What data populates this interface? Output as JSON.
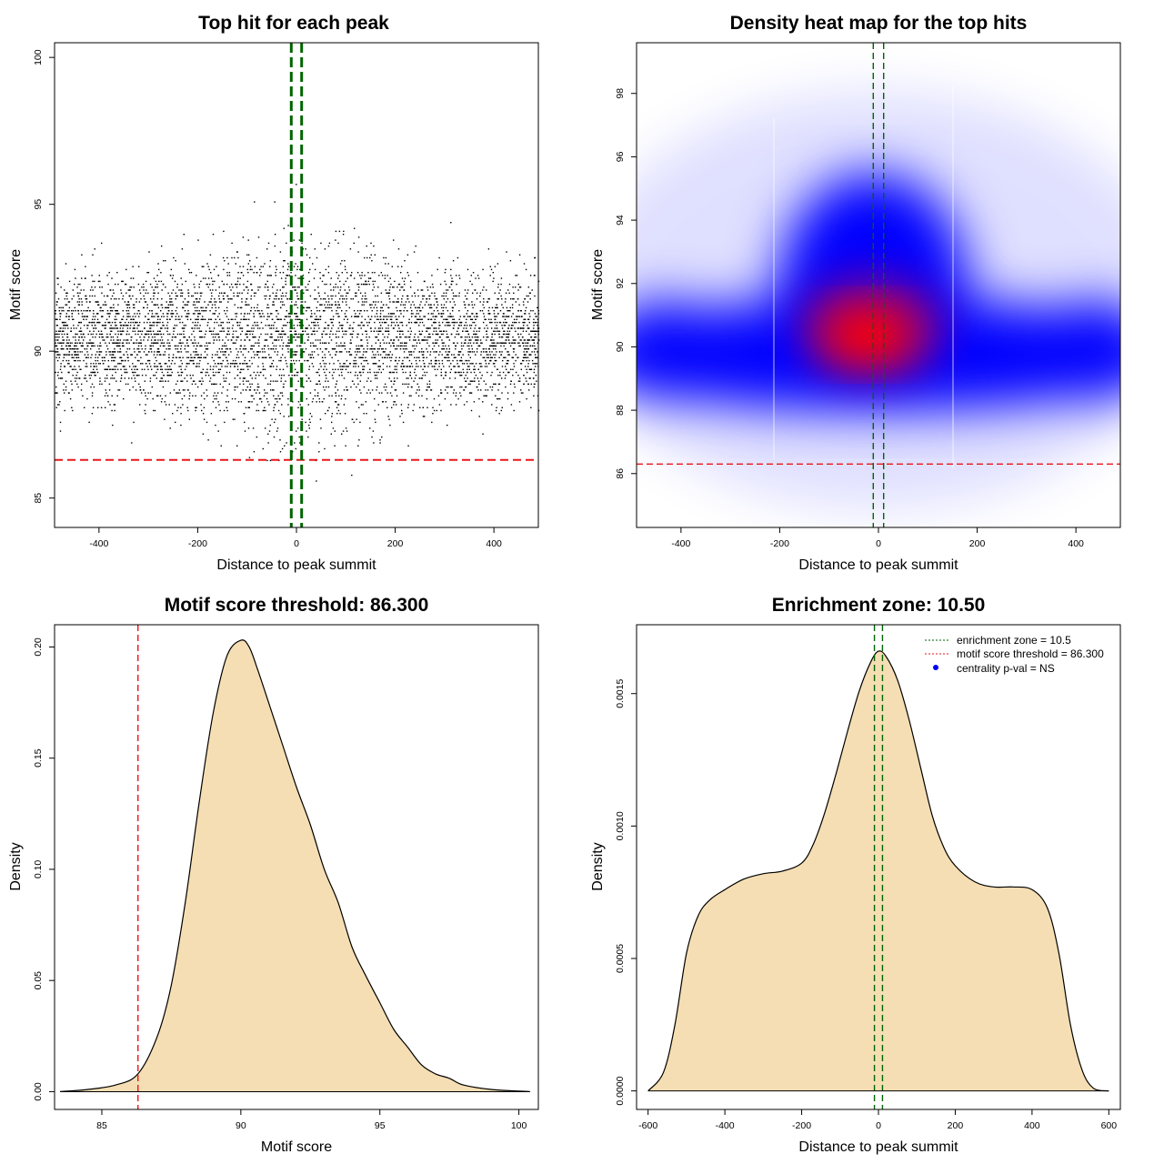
{
  "colors": {
    "threshold_line": "#e8171c",
    "zone_line": "#006400",
    "density_fill": "#f5deb3",
    "points": "#000000",
    "heat_low": "#ffffff",
    "heat_mid": "#0000ff",
    "heat_high": "#ff0000",
    "legend_point": "#0000ff"
  },
  "chart_data": [
    {
      "type": "scatter",
      "title": "Top hit for each peak",
      "xlabel": "Distance to peak summit",
      "ylabel": "Motif score",
      "xlim": [
        -490,
        490
      ],
      "ylim": [
        84,
        100.5
      ],
      "xticks": [
        -400,
        -200,
        0,
        200,
        400
      ],
      "yticks": [
        85,
        90,
        95,
        100
      ],
      "reference_lines": {
        "hline": 86.3,
        "vlines": [
          -10.5,
          10.5
        ]
      },
      "points_description_values": {
        "x_range": [
          -490,
          490
        ],
        "y_center": 90.5,
        "y_spread": 2.1,
        "n_points": 5200
      }
    },
    {
      "type": "heatmap",
      "title": "Density heat map for the top hits",
      "xlabel": "Distance to peak summit",
      "ylabel": "Motif score",
      "xlim": [
        -490,
        490
      ],
      "ylim": [
        84.3,
        99.6
      ],
      "xticks": [
        -400,
        -200,
        0,
        200,
        400
      ],
      "yticks": [
        86,
        88,
        90,
        92,
        94,
        96,
        98
      ],
      "reference_lines": {
        "hline": 86.3,
        "vlines": [
          -10.5,
          10.5
        ]
      },
      "peak": {
        "x": -20,
        "y": 90.2
      }
    },
    {
      "type": "area",
      "title": "Motif score threshold: 86.300",
      "xlabel": "Motif score",
      "ylabel": "Density",
      "xlim": [
        83.3,
        100.7
      ],
      "ylim": [
        -0.008,
        0.21
      ],
      "xticks": [
        85,
        90,
        95,
        100
      ],
      "yticks": [
        "0.00",
        "0.05",
        "0.10",
        "0.15",
        "0.20"
      ],
      "reference_lines": {
        "vline": 86.3
      },
      "x": [
        83.5,
        84.5,
        85.5,
        86.3,
        87.0,
        87.5,
        88.0,
        88.5,
        89.0,
        89.5,
        90.0,
        90.3,
        90.6,
        91.0,
        91.5,
        92.0,
        92.5,
        93.0,
        93.5,
        94.0,
        94.5,
        95.0,
        95.5,
        96.0,
        96.5,
        97.0,
        97.5,
        98.0,
        99.0,
        100.4
      ],
      "y": [
        0.0,
        0.001,
        0.003,
        0.008,
        0.025,
        0.048,
        0.085,
        0.13,
        0.17,
        0.196,
        0.203,
        0.2,
        0.19,
        0.175,
        0.156,
        0.137,
        0.12,
        0.1,
        0.085,
        0.065,
        0.052,
        0.04,
        0.028,
        0.02,
        0.012,
        0.008,
        0.006,
        0.003,
        0.001,
        0.0
      ]
    },
    {
      "type": "area",
      "title": "Enrichment zone: 10.50",
      "xlabel": "Distance to peak summit",
      "ylabel": "Density",
      "xlim": [
        -630,
        630
      ],
      "ylim": [
        -7e-05,
        0.00176
      ],
      "xticks": [
        -600,
        -400,
        -200,
        0,
        200,
        400,
        600
      ],
      "yticks": [
        "0.0000",
        "0.0005",
        "0.0010",
        "0.0015"
      ],
      "reference_lines": {
        "vlines": [
          -10.5,
          10.5
        ]
      },
      "x": [
        -600,
        -560,
        -530,
        -500,
        -470,
        -440,
        -400,
        -350,
        -300,
        -250,
        -200,
        -170,
        -140,
        -110,
        -80,
        -50,
        -20,
        0,
        20,
        50,
        80,
        110,
        140,
        170,
        200,
        250,
        300,
        350,
        400,
        440,
        470,
        500,
        530,
        560,
        600
      ],
      "y": [
        0.0,
        7e-05,
        0.00025,
        0.00052,
        0.00066,
        0.00072,
        0.00076,
        0.0008,
        0.00082,
        0.00083,
        0.00086,
        0.00093,
        0.00105,
        0.0012,
        0.00136,
        0.00151,
        0.00162,
        0.00166,
        0.00164,
        0.00155,
        0.0014,
        0.00122,
        0.00104,
        0.00092,
        0.00085,
        0.00079,
        0.00077,
        0.00077,
        0.00076,
        0.00069,
        0.00052,
        0.00025,
        8e-05,
        1e-05,
        0.0
      ],
      "legend": {
        "position": "top-right",
        "items": [
          {
            "label": "enrichment zone = 10.5",
            "style": "dotted-line",
            "color": "#006400"
          },
          {
            "label": "motif score threshold = 86.300",
            "style": "dotted-line",
            "color": "#e8171c"
          },
          {
            "label": "centrality p-val = NS",
            "style": "point",
            "color": "#0000ff"
          }
        ]
      }
    }
  ]
}
